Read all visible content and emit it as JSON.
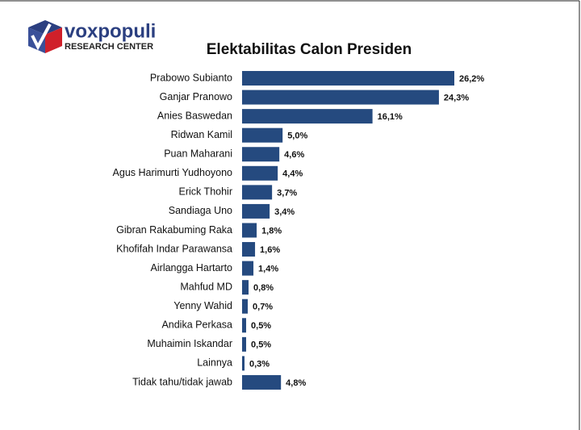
{
  "logo": {
    "name": "voxpopuli",
    "tagline": "RESEARCH CENTER"
  },
  "chart_data": {
    "type": "bar",
    "orientation": "horizontal",
    "title": "Elektabilitas Calon Presiden",
    "color": "#254a7f",
    "categories": [
      "Prabowo Subianto",
      "Ganjar Pranowo",
      "Anies Baswedan",
      "Ridwan Kamil",
      "Puan Maharani",
      "Agus Harimurti Yudhoyono",
      "Erick Thohir",
      "Sandiaga Uno",
      "Gibran Rakabuming Raka",
      "Khofifah Indar Parawansa",
      "Airlangga Hartarto",
      "Mahfud MD",
      "Yenny Wahid",
      "Andika Perkasa",
      "Muhaimin Iskandar",
      "Lainnya",
      "Tidak tahu/tidak jawab"
    ],
    "values": [
      26.2,
      24.3,
      16.1,
      5.0,
      4.6,
      4.4,
      3.7,
      3.4,
      1.8,
      1.6,
      1.4,
      0.8,
      0.7,
      0.5,
      0.5,
      0.3,
      4.8
    ],
    "value_labels": [
      "26,2%",
      "24,3%",
      "16,1%",
      "5,0%",
      "4,6%",
      "4,4%",
      "3,7%",
      "3,4%",
      "1,8%",
      "1,6%",
      "1,4%",
      "0,8%",
      "0,7%",
      "0,5%",
      "0,5%",
      "0,3%",
      "4,8%"
    ]
  }
}
